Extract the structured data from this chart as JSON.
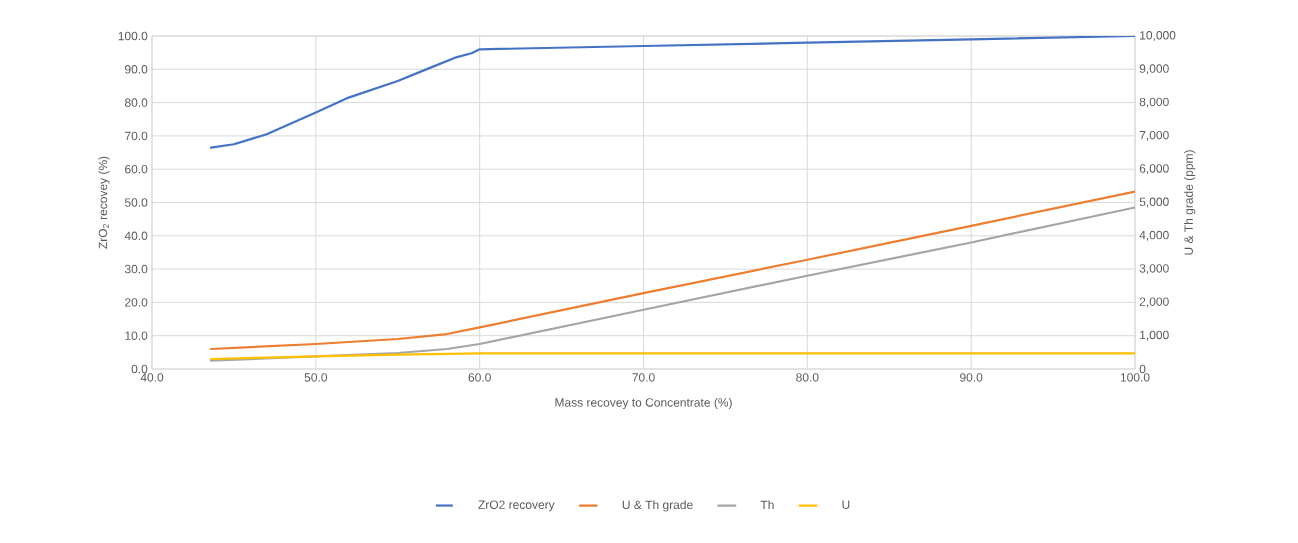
{
  "chart_data": {
    "type": "line",
    "xlabel": "Mass recovey to Concentrate (%)",
    "ylabel": "ZrO$_{2}$ recovey (%)",
    "y2label": "U & Th grade (ppm)",
    "xlim": [
      40,
      100
    ],
    "xticks": [
      {
        "value": 40,
        "label": "40.0"
      },
      {
        "value": 50,
        "label": "50.0"
      },
      {
        "value": 60,
        "label": "60.0"
      },
      {
        "value": 70,
        "label": "70.0"
      },
      {
        "value": 80,
        "label": "80.0"
      },
      {
        "value": 90,
        "label": "90.0"
      },
      {
        "value": 100,
        "label": "100.0"
      }
    ],
    "ylim": [
      0,
      100
    ],
    "yticks": [
      {
        "value": 0,
        "label": "0.0"
      },
      {
        "value": 10,
        "label": "10.0"
      },
      {
        "value": 20,
        "label": "20.0"
      },
      {
        "value": 30,
        "label": "30.0"
      },
      {
        "value": 40,
        "label": "40.0"
      },
      {
        "value": 50,
        "label": "50.0"
      },
      {
        "value": 60,
        "label": "60.0"
      },
      {
        "value": 70,
        "label": "70.0"
      },
      {
        "value": 80,
        "label": "80.0"
      },
      {
        "value": 90,
        "label": "90.0"
      },
      {
        "value": 100,
        "label": "100.0"
      }
    ],
    "y2lim": [
      0,
      10000
    ],
    "y2ticks": [
      0,
      {
        "value": 1000,
        "label": "1,000"
      },
      {
        "value": 2000,
        "label": "2,000"
      },
      {
        "value": 3000,
        "label": "3,000"
      },
      {
        "value": 4000,
        "label": "4,000"
      },
      {
        "value": 5000,
        "label": "5,000"
      },
      {
        "value": 6000,
        "label": "6,000"
      },
      {
        "value": 7000,
        "label": "7,000"
      },
      {
        "value": 8000,
        "label": "8,000"
      },
      {
        "value": 9000,
        "label": "9,000"
      },
      {
        "value": 10000,
        "label": "10,000"
      }
    ],
    "grid": true,
    "legend": "bottom",
    "series": [
      {
        "name": "ZrO2 recovery",
        "color": "#4472c4",
        "x": [
          43.6,
          45,
          47,
          50,
          52,
          55,
          57,
          58.5,
          59.5,
          60,
          70,
          80,
          90,
          100
        ],
        "values": [
          66.5,
          67.5,
          70.5,
          77,
          81.5,
          86.5,
          90.5,
          93.5,
          94.8,
          96,
          97,
          98,
          99,
          100
        ]
      },
      {
        "name": "U & Th grade",
        "color": "#ed7d31",
        "axis": "y2",
        "x": [
          43.6,
          50,
          55,
          58,
          60,
          70,
          80,
          90,
          100
        ],
        "values": [
          600,
          750,
          900,
          1050,
          1250,
          2280,
          3280,
          4300,
          5330
        ]
      },
      {
        "name": "Th",
        "color": "#a5a5a5",
        "axis": "y2",
        "x": [
          43.6,
          50,
          55,
          58,
          60,
          70,
          80,
          90,
          100
        ],
        "values": [
          250,
          null,
          480,
          600,
          750,
          1780,
          2800,
          3800,
          4850
        ]
      },
      {
        "name": "U",
        "color": "#ffc000",
        "axis": "y2",
        "x": [
          43.6,
          50,
          55,
          60,
          100
        ],
        "values": [
          300,
          380,
          430,
          470,
          470
        ]
      }
    ]
  }
}
